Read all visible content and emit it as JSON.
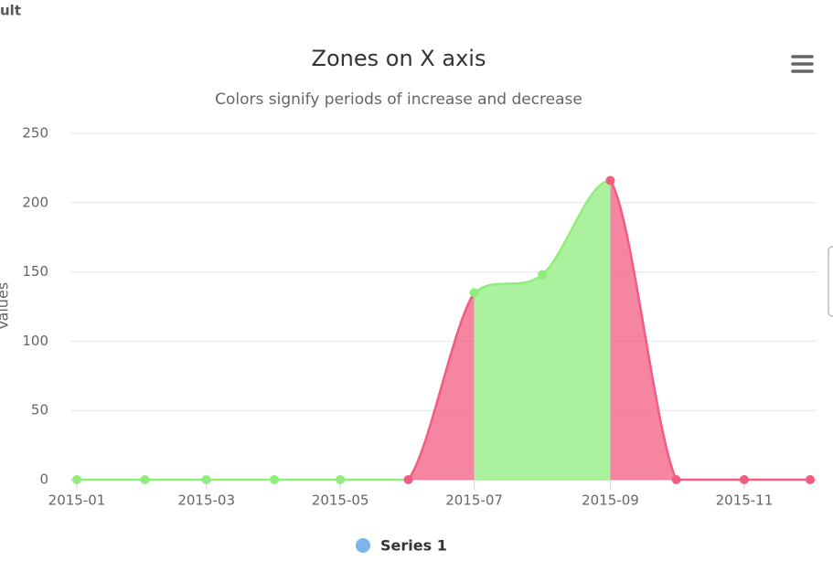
{
  "page_label": "ult",
  "chart_data": {
    "type": "areaspline",
    "title": "Zones on X axis",
    "subtitle": "Colors signify periods of increase and decrease",
    "y_axis_label": "Values",
    "x": [
      "2015-01",
      "2015-02",
      "2015-03",
      "2015-04",
      "2015-05",
      "2015-06",
      "2015-07",
      "2015-08",
      "2015-09",
      "2015-10",
      "2015-11",
      "2015-12"
    ],
    "series": [
      {
        "name": "Series 1",
        "color": "#7cb5ec",
        "values": [
          0,
          0,
          0,
          0,
          0,
          0,
          135,
          148,
          216,
          0,
          0,
          0
        ]
      }
    ],
    "zones": [
      {
        "end": "2015-06",
        "color": "#90ed7d"
      },
      {
        "end": "2015-07",
        "color": "#f15c80"
      },
      {
        "end": "2015-09",
        "color": "#90ed7d"
      },
      {
        "color": "#f15c80"
      }
    ],
    "xlim": [
      "2015-01",
      "2015-12"
    ],
    "xticks": [
      "2015-01",
      "2015-03",
      "2015-05",
      "2015-07",
      "2015-09",
      "2015-11"
    ],
    "ylim": [
      0,
      250
    ],
    "yticks": [
      0,
      50,
      100,
      150,
      200,
      250
    ],
    "grid": true,
    "legend": "bottom"
  }
}
